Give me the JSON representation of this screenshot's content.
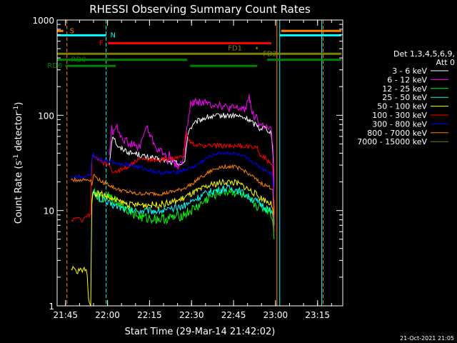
{
  "chart_data": {
    "type": "line",
    "title": "RHESSI Observing Summary Count Rates",
    "xlabel": "Start Time (29-Mar-14 21:42:02)",
    "ylabel_main": "Count Rate (s",
    "ylabel_sup1": "-1",
    "ylabel_mid": " detector",
    "ylabel_sup2": "-1",
    "ylabel_end": ")",
    "x_unit": "minutes after 21:42:02",
    "xlim": [
      0,
      102
    ],
    "ylim": [
      1,
      1000
    ],
    "yscale": "log",
    "x_ticks": [
      {
        "t": 3,
        "label": "21:45"
      },
      {
        "t": 18,
        "label": "22:00"
      },
      {
        "t": 33,
        "label": "22:15"
      },
      {
        "t": 48,
        "label": "22:30"
      },
      {
        "t": 63,
        "label": "22:45"
      },
      {
        "t": 78,
        "label": "23:00"
      },
      {
        "t": 93,
        "label": "23:15"
      }
    ],
    "y_ticks": [
      {
        "v": 1,
        "label": "1"
      },
      {
        "v": 10,
        "label": "10"
      },
      {
        "v": 100,
        "label": "100"
      },
      {
        "v": 1000,
        "label": "1000"
      }
    ],
    "legend": {
      "title1": "Det 1,3,4,5,6,9,",
      "title2": "Att 0",
      "placement": "right"
    },
    "series": [
      {
        "name": "3 - 6 keV",
        "color": "#ffffff",
        "x": [
          18.6,
          19.5,
          20,
          21,
          22,
          24,
          26,
          28,
          30,
          32,
          34,
          36,
          38,
          40,
          42,
          44,
          45,
          45.6,
          46,
          47,
          48,
          49,
          50,
          52,
          54,
          56,
          58,
          60,
          62,
          64,
          66,
          68,
          70,
          71,
          71.5,
          72,
          74,
          75.5,
          76.5,
          77.3,
          77.5
        ],
        "y": [
          30,
          55,
          62,
          52,
          45,
          44,
          40,
          40,
          38,
          36,
          36,
          34,
          34,
          32,
          32,
          31,
          30,
          33,
          45,
          70,
          75,
          80,
          86,
          92,
          96,
          96,
          99,
          99,
          99,
          99,
          95,
          92,
          82,
          80,
          80,
          73,
          75,
          70,
          65,
          30,
          7
        ]
      },
      {
        "name": "6 - 12 keV",
        "color": "#ff00ff",
        "x": [
          18.6,
          19.5,
          20,
          20.8,
          22,
          24,
          26,
          28,
          29,
          30,
          31,
          32,
          34,
          36,
          38,
          39.5,
          40,
          41,
          42,
          44,
          45,
          45.6,
          46,
          47,
          48,
          50,
          52,
          54,
          56,
          58,
          60,
          62,
          64,
          66,
          67.5,
          68.2,
          68.6,
          69,
          70,
          71,
          71.5,
          72,
          74,
          75.5,
          76.5,
          77.3,
          77.5
        ],
        "y": [
          40,
          72,
          65,
          78,
          68,
          55,
          50,
          48,
          44,
          52,
          65,
          75,
          55,
          43,
          40,
          34,
          38,
          36,
          30,
          30,
          34,
          38,
          55,
          110,
          135,
          140,
          138,
          130,
          132,
          130,
          120,
          118,
          118,
          117,
          120,
          150,
          170,
          130,
          100,
          98,
          92,
          80,
          77,
          72,
          68,
          35,
          8
        ]
      },
      {
        "name": "12 - 25 keV",
        "color": "#00ff00",
        "x": [
          12.4,
          13,
          14,
          15,
          16,
          17,
          18,
          20,
          22,
          24,
          26,
          28,
          30,
          32,
          34,
          36,
          38,
          40,
          42,
          44,
          46,
          48,
          50,
          52,
          54,
          56,
          58,
          60,
          62,
          64,
          66,
          68,
          70,
          72,
          74,
          76,
          77,
          77.5
        ],
        "y": [
          14,
          16,
          15,
          14,
          14,
          13,
          14,
          13,
          12,
          11,
          10,
          9,
          8.5,
          8.3,
          8.3,
          8.2,
          8.2,
          8.3,
          8.5,
          8.8,
          9.3,
          10,
          11,
          12,
          13.5,
          14.5,
          15.5,
          16,
          16,
          15.5,
          14.5,
          13,
          12,
          11,
          10.5,
          10,
          8,
          5
        ]
      },
      {
        "name": "25 - 50 keV",
        "color": "#00ffff",
        "x": [
          12.4,
          13,
          14,
          15,
          16,
          17,
          18,
          20,
          22,
          24,
          26,
          28,
          30,
          32,
          34,
          36,
          38,
          40,
          42,
          44,
          46,
          48,
          50,
          52,
          54,
          56,
          58,
          60,
          62,
          64,
          66,
          68,
          70,
          72,
          74,
          76,
          77,
          77.5
        ],
        "y": [
          13,
          15.5,
          14,
          13.5,
          13,
          12.5,
          12,
          11.5,
          11,
          10.5,
          10,
          10,
          10,
          10,
          10,
          10,
          10,
          10,
          10.5,
          11,
          11.5,
          12.5,
          13.5,
          14.5,
          15.5,
          16,
          16.5,
          17,
          17,
          16.5,
          15.5,
          14,
          13,
          12,
          11,
          10,
          9,
          6
        ]
      },
      {
        "name": "50 - 100 keV",
        "color": "#ffff00",
        "x": [
          5,
          6,
          7,
          8,
          9,
          10,
          10.5,
          11,
          11.5,
          12,
          12.4,
          13,
          14,
          16,
          18,
          20,
          22,
          24,
          26,
          28,
          30,
          32,
          34,
          36,
          38,
          40,
          42,
          44,
          46,
          48,
          50,
          52,
          54,
          56,
          58,
          60,
          62,
          64,
          66,
          68,
          70,
          72,
          74,
          76,
          77,
          77.5
        ],
        "y": [
          2.3,
          2.5,
          2.2,
          2.4,
          2.3,
          2.5,
          2.4,
          1.6,
          1,
          1,
          13,
          16,
          15,
          15,
          14,
          13,
          12.5,
          12,
          11.5,
          11.5,
          11.5,
          11.5,
          11.5,
          11.5,
          11.8,
          12,
          12.5,
          13,
          14,
          15,
          16,
          17,
          18,
          19,
          19.5,
          20,
          20,
          19.5,
          18.5,
          17,
          15.5,
          14,
          13,
          12,
          11,
          7
        ]
      },
      {
        "name": "100 - 300 keV",
        "color": "#ff0000",
        "x": [
          5,
          6,
          7,
          8,
          9,
          10,
          11,
          11.5,
          12,
          12.4,
          13,
          14,
          16,
          18,
          19,
          20,
          22,
          24,
          26,
          28,
          30,
          32,
          34,
          36,
          38,
          40,
          42,
          44,
          45,
          45.5,
          46,
          47,
          48,
          50,
          52,
          54,
          56,
          58,
          60,
          62,
          64,
          66,
          68,
          70,
          71,
          71.5,
          72,
          74,
          76,
          77,
          77.5
        ],
        "y": [
          7.5,
          8.5,
          8,
          8.3,
          8,
          8.5,
          9,
          9,
          9,
          35,
          38,
          35,
          32,
          30,
          28,
          26,
          26,
          28,
          30,
          33,
          35,
          34,
          34,
          34,
          35,
          35,
          35,
          36,
          38,
          50,
          70,
          55,
          50,
          48,
          48,
          48,
          48,
          48,
          48,
          48,
          48,
          47,
          47,
          47,
          47,
          45,
          40,
          36,
          32,
          30,
          6
        ]
      },
      {
        "name": "300 - 800 keV",
        "color": "#0000ff",
        "x": [
          5,
          6,
          7,
          8,
          9,
          10,
          11,
          11.5,
          12,
          12.4,
          13,
          14,
          16,
          18,
          19,
          20,
          22,
          24,
          26,
          28,
          30,
          32,
          34,
          36,
          38,
          40,
          42,
          44,
          46,
          48,
          50,
          52,
          54,
          56,
          58,
          60,
          62,
          64,
          66,
          68,
          70,
          72,
          74,
          76,
          77,
          77.5
        ],
        "y": [
          22,
          23,
          22,
          23,
          22,
          23,
          24,
          24,
          24,
          36,
          39,
          36,
          34,
          33,
          33,
          32,
          31,
          31,
          30,
          29,
          28,
          27,
          26,
          25,
          25,
          25,
          25,
          26,
          27,
          28,
          30,
          33,
          36,
          39,
          40,
          40,
          40,
          39,
          37,
          35,
          32,
          29,
          27,
          25,
          24,
          13
        ]
      },
      {
        "name": "800 - 7000 keV",
        "color": "#ff8000",
        "x": [
          5,
          6,
          7,
          8,
          9,
          10,
          11,
          11.5,
          12,
          12.4,
          13,
          14,
          16,
          18,
          20,
          22,
          24,
          26,
          28,
          30,
          32,
          34,
          36,
          38,
          40,
          42,
          44,
          46,
          48,
          50,
          52,
          54,
          56,
          58,
          60,
          62,
          64,
          66,
          68,
          70,
          72,
          74,
          76,
          77,
          77.5
        ],
        "y": [
          21,
          21,
          21,
          21,
          21,
          21,
          21,
          21,
          21,
          19,
          24,
          22,
          20,
          19,
          17.5,
          16.5,
          16,
          15.5,
          15,
          15,
          15,
          15,
          15,
          15,
          15.5,
          16,
          16.5,
          17.5,
          19,
          21,
          23,
          25,
          27,
          28.5,
          29,
          29,
          28.5,
          27,
          25,
          22.5,
          20,
          18.5,
          17.5,
          17,
          9
        ]
      }
    ],
    "bars": [
      {
        "label": "S",
        "color": "#ff8000",
        "segments": [
          [
            0,
            2.2
          ],
          [
            80,
            101.5
          ]
        ],
        "y": 768,
        "label_x": 4.5
      },
      {
        "label": "N",
        "color": "#00ffff",
        "segments": [
          [
            0,
            17.5
          ],
          [
            79.5,
            101.5
          ]
        ],
        "y": 692,
        "label_x": 19
      },
      {
        "label": "F",
        "color": "#ff0000",
        "segments": [
          [
            18.2,
            76.5
          ]
        ],
        "y": 570,
        "label_x": 15
      },
      {
        "label": "FD1",
        "color": "#808000",
        "segments": [
          [
            71,
            71.6
          ]
        ],
        "y": 507,
        "label_x": 61
      },
      {
        "label": "FD2",
        "color": "#808000",
        "segments": [
          [
            0,
            101.5
          ]
        ],
        "y": 442,
        "label_x": 73.5
      },
      {
        "label": "RD0",
        "color": "#008000",
        "segments": [
          [
            0,
            46.5
          ],
          [
            75,
            101.5
          ]
        ],
        "y": 383,
        "label_x": 5
      },
      {
        "label": "RD6",
        "color": "#008000",
        "segments": [
          [
            3,
            21
          ],
          [
            47.5,
            71.5
          ]
        ],
        "y": 330,
        "label_x": -3.5
      }
    ],
    "vlines": [
      {
        "t": 0,
        "color": "#00ffff",
        "dash": false
      },
      {
        "t": 3.5,
        "color": "#ff8000",
        "dash": true
      },
      {
        "t": 17.5,
        "color": "#00ffff",
        "dash": true
      },
      {
        "t": 78.5,
        "color": "#ff8000",
        "dash": false
      },
      {
        "t": 79.5,
        "color": "#00ffff",
        "dash": false
      },
      {
        "t": 94.5,
        "color": "#00ffff",
        "dash": false
      },
      {
        "t": 95,
        "color": "#ff8000",
        "dash": true
      }
    ]
  },
  "footer_date": "21-Oct-2021 21:05"
}
